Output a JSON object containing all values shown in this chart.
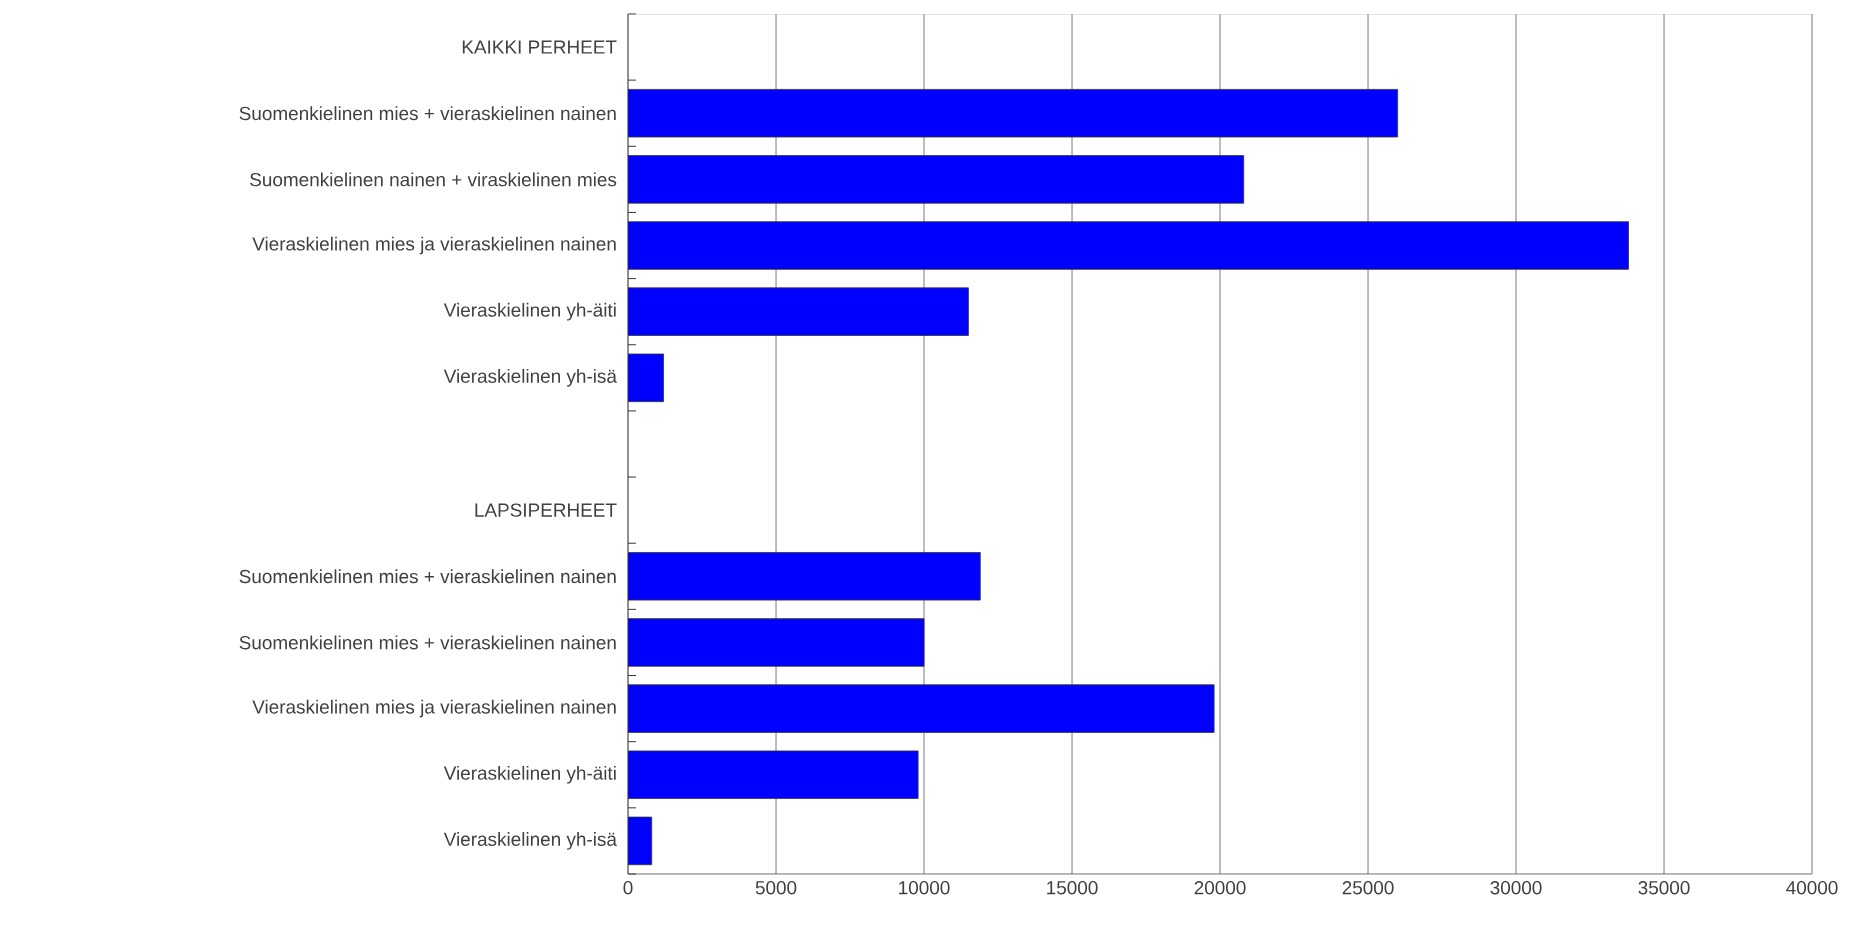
{
  "chart_data": {
    "type": "bar",
    "orientation": "horizontal",
    "categories": [
      "KAIKKI PERHEET",
      "Suomenkielinen mies + vieraskielinen nainen",
      "Suomenkielinen nainen + viraskielinen mies",
      "Vieraskielinen mies ja vieraskielinen nainen",
      "Vieraskielinen yh-äiti",
      "Vieraskielinen yh-isä",
      null,
      "LAPSIPERHEET",
      "Suomenkielinen mies + vieraskielinen nainen",
      "Suomenkielinen mies + vieraskielinen nainen",
      "Vieraskielinen mies ja vieraskielinen nainen",
      "Vieraskielinen yh-äiti",
      "Vieraskielinen yh-isä"
    ],
    "values": [
      null,
      26000,
      20800,
      33800,
      11500,
      1200,
      null,
      null,
      11900,
      10000,
      19800,
      9800,
      800
    ],
    "color": "#0000ff",
    "xlim": [
      0,
      40000
    ],
    "xticks": [
      0,
      5000,
      10000,
      15000,
      20000,
      25000,
      30000,
      35000,
      40000
    ],
    "grid": "x"
  }
}
